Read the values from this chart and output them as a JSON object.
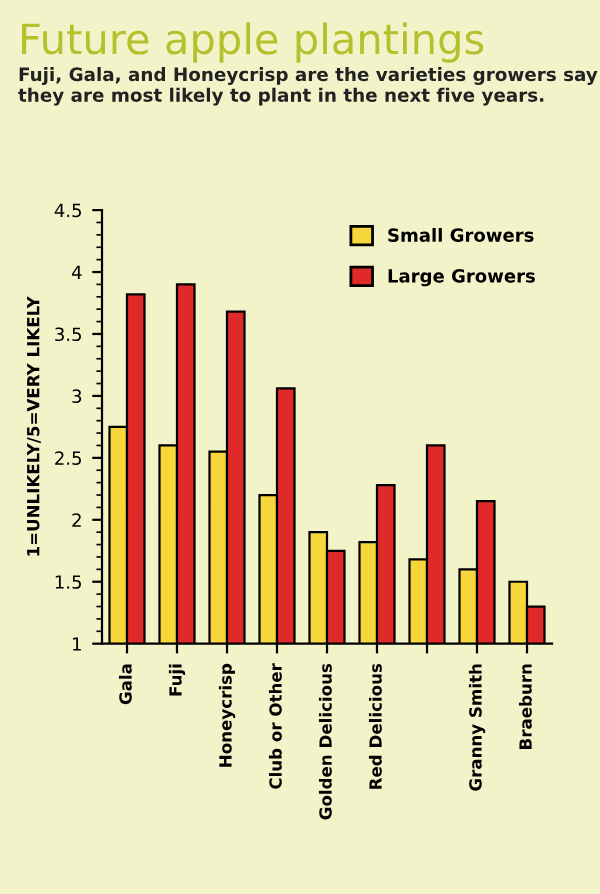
{
  "chart_data": {
    "type": "bar",
    "title": "Future apple plantings",
    "subtitle": "Fuji, Gala, and Honeycrisp are the varieties growers say they are most likely to plant in the next five years.",
    "ylabel": "1=UNLIKELY/5=VERY LIKELY",
    "categories": [
      "Gala",
      "Fuji",
      "Honeycrisp",
      "Club or Other",
      "Golden Delicious",
      "Red Delicious",
      null,
      "Granny Smith",
      "Braeburn"
    ],
    "series": [
      {
        "name": "Small Growers",
        "color": "#f7d63c",
        "values": [
          2.75,
          2.6,
          2.55,
          2.2,
          1.9,
          1.82,
          1.68,
          1.6,
          1.5
        ]
      },
      {
        "name": "Large Growers",
        "color": "#e02a2a",
        "values": [
          3.82,
          3.9,
          3.68,
          3.06,
          1.75,
          2.28,
          2.6,
          2.15,
          1.3
        ]
      }
    ],
    "ylim": [
      1,
      4.5
    ],
    "yticks": [
      1,
      1.5,
      2,
      2.5,
      3,
      3.5,
      4,
      4.5
    ],
    "grid": false,
    "legend": "top right"
  }
}
